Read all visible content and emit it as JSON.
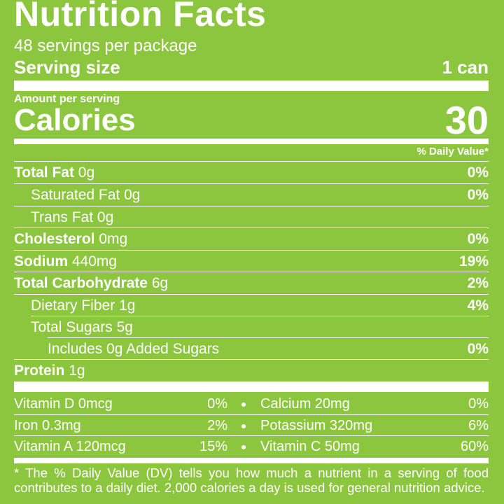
{
  "header": {
    "title": "Nutrition Facts",
    "servings": "48 servings per package",
    "serving_size_label": "Serving size",
    "serving_size_value": "1 can"
  },
  "calories": {
    "amount_per_serving": "Amount per serving",
    "label": "Calories",
    "value": "30"
  },
  "daily_value_header": "% Daily Value*",
  "nutrients": [
    {
      "name": "Total Fat",
      "amount": "0g",
      "dv": "0%"
    },
    {
      "name": "Saturated Fat",
      "amount": "0g",
      "dv": "0%"
    },
    {
      "name": "Trans Fat",
      "amount": "0g"
    },
    {
      "name": "Cholesterol",
      "amount": "0mg",
      "dv": "0%"
    },
    {
      "name": "Sodium",
      "amount": "440mg",
      "dv": "19%"
    },
    {
      "name": "Total Carbohydrate",
      "amount": "6g",
      "dv": "2%"
    },
    {
      "name": "Dietary Fiber",
      "amount": "1g",
      "dv": "4%"
    },
    {
      "name": "Total Sugars",
      "amount": "5g"
    },
    {
      "name": "Includes 0g Added Sugars",
      "dv": "0%"
    },
    {
      "name": "Protein",
      "amount": "1g"
    }
  ],
  "vitamins": [
    [
      {
        "name": "Vitamin D 0mcg",
        "dv": "0%"
      },
      {
        "name": "Calcium 20mg",
        "dv": "0%"
      }
    ],
    [
      {
        "name": "Iron 0.3mg",
        "dv": "2%"
      },
      {
        "name": "Potassium 320mg",
        "dv": "6%"
      }
    ],
    [
      {
        "name": "Vitamin A 120mcg",
        "dv": "15%"
      },
      {
        "name": "Vitamin C 50mg",
        "dv": "60%"
      }
    ]
  ],
  "footnote": "* The % Daily Value (DV) tells you how much a nutrient in a serving of food contributes to a daily diet. 2,000 calories a day is used for general nutrition advice."
}
